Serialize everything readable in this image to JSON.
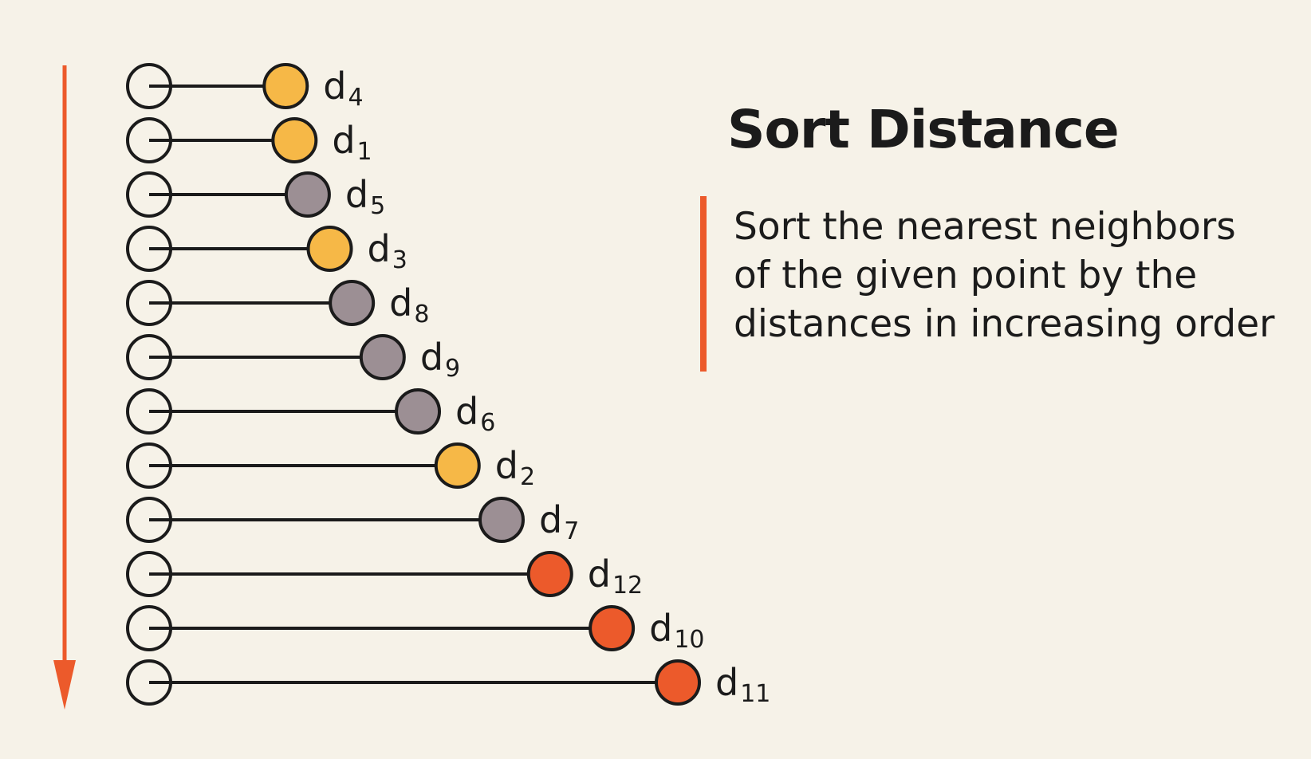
{
  "title": "Sort Distance",
  "description": [
    "Sort the nearest neighbors",
    "of the given point by the",
    "distances in increasing order"
  ],
  "colors": {
    "background": "#f6f2e8",
    "accent": "#ec5a2b",
    "yellow": "#f6b847",
    "gray": "#9c8f94",
    "orange": "#ec5a2b",
    "stroke": "#1b1b1b"
  },
  "chart_data": {
    "type": "diagram",
    "sorted_order": [
      {
        "label": "d",
        "sub": "4",
        "distance": 3.1,
        "color": "yellow"
      },
      {
        "label": "d",
        "sub": "1",
        "distance": 3.3,
        "color": "yellow"
      },
      {
        "label": "d",
        "sub": "5",
        "distance": 3.6,
        "color": "gray"
      },
      {
        "label": "d",
        "sub": "3",
        "distance": 4.1,
        "color": "yellow"
      },
      {
        "label": "d",
        "sub": "8",
        "distance": 4.6,
        "color": "gray"
      },
      {
        "label": "d",
        "sub": "9",
        "distance": 5.3,
        "color": "gray"
      },
      {
        "label": "d",
        "sub": "6",
        "distance": 6.1,
        "color": "gray"
      },
      {
        "label": "d",
        "sub": "2",
        "distance": 7.0,
        "color": "yellow"
      },
      {
        "label": "d",
        "sub": "7",
        "distance": 8.0,
        "color": "gray"
      },
      {
        "label": "d",
        "sub": "12",
        "distance": 9.1,
        "color": "orange"
      },
      {
        "label": "d",
        "sub": "10",
        "distance": 10.5,
        "color": "orange"
      },
      {
        "label": "d",
        "sub": "11",
        "distance": 12.0,
        "color": "orange"
      }
    ]
  }
}
